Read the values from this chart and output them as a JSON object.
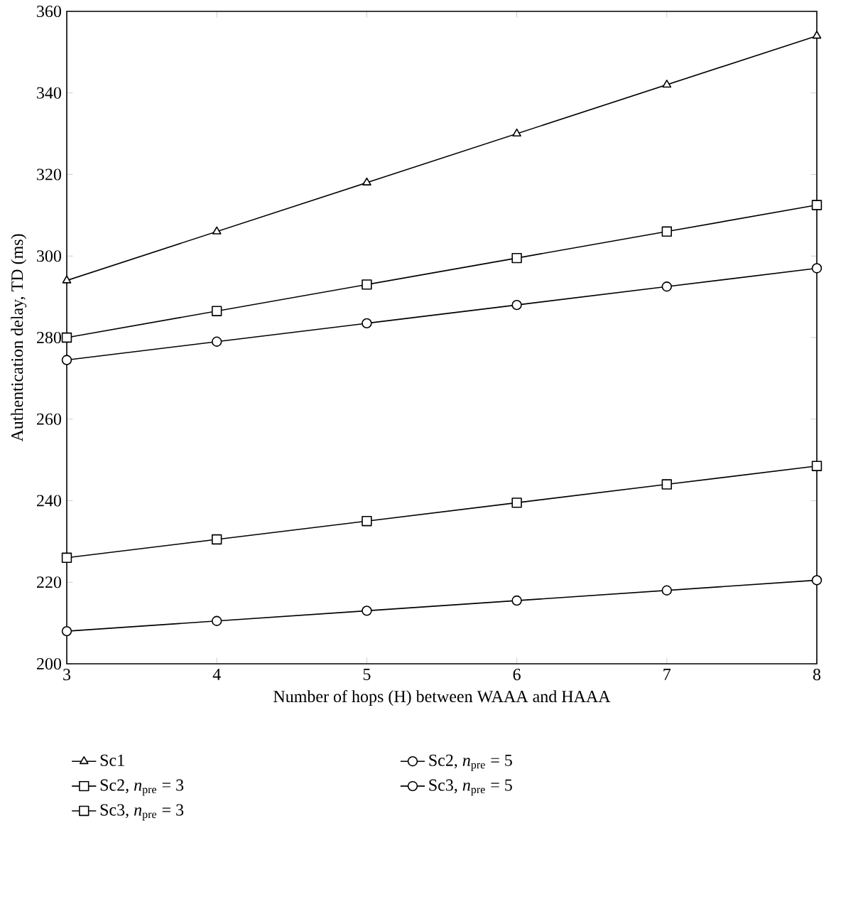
{
  "chart_data": {
    "type": "line",
    "xlabel": "Number of hops (H) between WAAA and HAAA",
    "ylabel": "Authentication delay, TD (ms)",
    "x": [
      3,
      4,
      5,
      6,
      7,
      8
    ],
    "xlim": [
      3,
      8
    ],
    "ylim": [
      200,
      360
    ],
    "xticks": [
      3,
      4,
      5,
      6,
      7,
      8
    ],
    "yticks": [
      200,
      220,
      240,
      260,
      280,
      300,
      320,
      340,
      360
    ],
    "grid": false,
    "legend": "bottom",
    "line_style": "solid",
    "series": [
      {
        "name": "Sc1",
        "color": "#000000",
        "marker": "triangle",
        "values": [
          294,
          306,
          318,
          330,
          342,
          354
        ]
      },
      {
        "name": "Sc2, *n*$_{pre}$ = 5",
        "color": "#000000",
        "marker": "circle",
        "values": [
          274.5,
          279,
          283.5,
          288,
          292.5,
          297
        ]
      },
      {
        "name": "Sc2, *n*$_{pre}$ = 3",
        "color": "#000000",
        "marker": "square",
        "values": [
          280,
          286.5,
          293,
          299.5,
          306,
          312.5
        ]
      },
      {
        "name": "Sc3, *n*$_{pre}$ = 5",
        "color": "#000000",
        "marker": "circle",
        "values": [
          208,
          210.5,
          213,
          215.5,
          218,
          220.5
        ]
      },
      {
        "name": "Sc3, *n*$_{pre}$ = 3",
        "color": "#000000",
        "marker": "square",
        "values": [
          226,
          230.5,
          235,
          239.5,
          244,
          248.5
        ]
      }
    ]
  }
}
